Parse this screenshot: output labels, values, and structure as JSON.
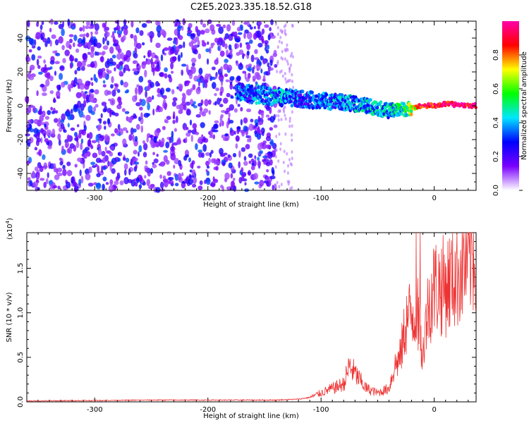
{
  "title": "C2E5.2023.335.18.52.G18",
  "chart_data": [
    {
      "type": "heatmap",
      "xlabel": "Height of straight line (km)",
      "ylabel": "Frequency (Hz)",
      "xlim": [
        -360,
        37
      ],
      "ylim": [
        -50,
        50
      ],
      "x_ticks": [
        -300,
        -200,
        -100,
        0
      ],
      "y_ticks": [
        -40,
        -20,
        0,
        20,
        40
      ],
      "colorbar": {
        "label": "Normalized spectral amplitude",
        "ticks": [
          0.0,
          0.2,
          0.4,
          0.6,
          0.8
        ],
        "tick_labels": [
          "0.0",
          "0.2",
          "0.4",
          "0.6",
          "0.8"
        ],
        "range": [
          0,
          1
        ],
        "colors": [
          "#ffffff",
          "#7a00ff",
          "#0000ff",
          "#00e6ff",
          "#00ff00",
          "#ffff00",
          "#ff0000",
          "#ff00aa"
        ]
      },
      "noise_region": {
        "x": [
          -360,
          -140
        ],
        "y": [
          -50,
          50
        ]
      },
      "signal_trace": [
        {
          "x": -175,
          "y": 8,
          "amp": 0.3
        },
        {
          "x": -135,
          "y": 5,
          "amp": 0.35
        },
        {
          "x": -120,
          "y": 4,
          "amp": 0.3
        },
        {
          "x": -100,
          "y": 3,
          "amp": 0.3
        },
        {
          "x": -80,
          "y": 2,
          "amp": 0.35
        },
        {
          "x": -60,
          "y": 0,
          "amp": 0.4
        },
        {
          "x": -40,
          "y": -3,
          "amp": 0.4
        },
        {
          "x": -25,
          "y": -2,
          "amp": 0.5
        },
        {
          "x": -10,
          "y": 0,
          "amp": 0.9
        },
        {
          "x": 0,
          "y": 0,
          "amp": 0.9
        },
        {
          "x": 10,
          "y": 1,
          "amp": 0.95
        },
        {
          "x": 37,
          "y": 0,
          "amp": 0.95
        }
      ]
    },
    {
      "type": "line",
      "xlabel": "Height of straight line (km)",
      "ylabel": "SNR (10 * v/v)",
      "y_multiplier": "(x10",
      "y_multiplier_exp": "4",
      "y_multiplier_close": ")",
      "xlim": [
        -360,
        37
      ],
      "ylim": [
        0,
        1.9
      ],
      "x_ticks": [
        -300,
        -200,
        -100,
        0
      ],
      "y_ticks": [
        0.0,
        0.5,
        1.0,
        1.5
      ],
      "y_tick_labels": [
        "0.0",
        "0.5",
        "1.0",
        "1.5"
      ],
      "color": "#ee3333",
      "series": [
        {
          "x": [
            -360,
            -300,
            -250,
            -200,
            -160,
            -140,
            -120,
            -110,
            -100,
            -90,
            -80,
            -75,
            -60,
            -50,
            -40,
            -35,
            -30,
            -25,
            -20,
            -15,
            -10,
            -5,
            0,
            10,
            20,
            30,
            37
          ],
          "y": [
            0.01,
            0.015,
            0.02,
            0.02,
            0.02,
            0.02,
            0.03,
            0.05,
            0.1,
            0.15,
            0.2,
            0.4,
            0.15,
            0.1,
            0.15,
            0.4,
            0.5,
            0.9,
            1.0,
            1.0,
            0.6,
            1.1,
            1.3,
            1.3,
            1.45,
            1.62,
            1.7
          ]
        }
      ]
    }
  ]
}
